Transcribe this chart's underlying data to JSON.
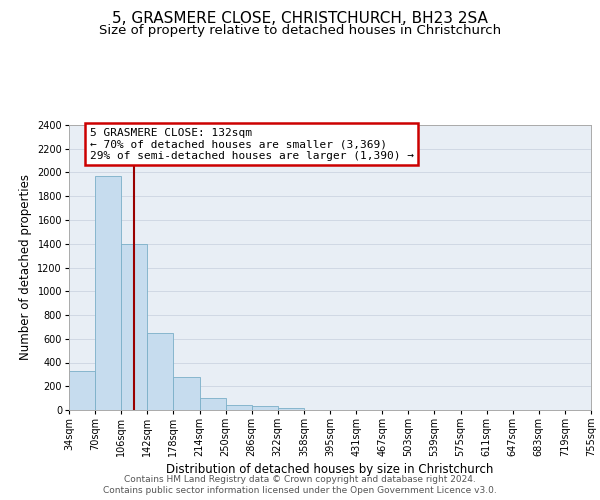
{
  "title": "5, GRASMERE CLOSE, CHRISTCHURCH, BH23 2SA",
  "subtitle": "Size of property relative to detached houses in Christchurch",
  "xlabel": "Distribution of detached houses by size in Christchurch",
  "ylabel": "Number of detached properties",
  "bar_values": [
    325,
    1970,
    1400,
    645,
    275,
    100,
    45,
    30,
    20,
    0,
    0,
    0,
    0,
    0,
    0,
    0,
    0,
    0,
    0,
    0
  ],
  "bin_labels": [
    "34sqm",
    "70sqm",
    "106sqm",
    "142sqm",
    "178sqm",
    "214sqm",
    "250sqm",
    "286sqm",
    "322sqm",
    "358sqm",
    "395sqm",
    "431sqm",
    "467sqm",
    "503sqm",
    "539sqm",
    "575sqm",
    "611sqm",
    "647sqm",
    "683sqm",
    "719sqm",
    "755sqm"
  ],
  "bar_color": "#c6dcee",
  "bar_edge_color": "#7aafc8",
  "vline_x": 2.5,
  "vline_color": "#990000",
  "ylim": [
    0,
    2400
  ],
  "yticks": [
    0,
    200,
    400,
    600,
    800,
    1000,
    1200,
    1400,
    1600,
    1800,
    2000,
    2200,
    2400
  ],
  "annotation_title": "5 GRASMERE CLOSE: 132sqm",
  "annotation_line1": "← 70% of detached houses are smaller (3,369)",
  "annotation_line2": "29% of semi-detached houses are larger (1,390) →",
  "annotation_box_color": "#ffffff",
  "annotation_box_edge": "#cc0000",
  "footer1": "Contains HM Land Registry data © Crown copyright and database right 2024.",
  "footer2": "Contains public sector information licensed under the Open Government Licence v3.0.",
  "title_fontsize": 11,
  "subtitle_fontsize": 9.5,
  "label_fontsize": 8.5,
  "tick_fontsize": 7,
  "footer_fontsize": 6.5,
  "annot_fontsize": 8
}
